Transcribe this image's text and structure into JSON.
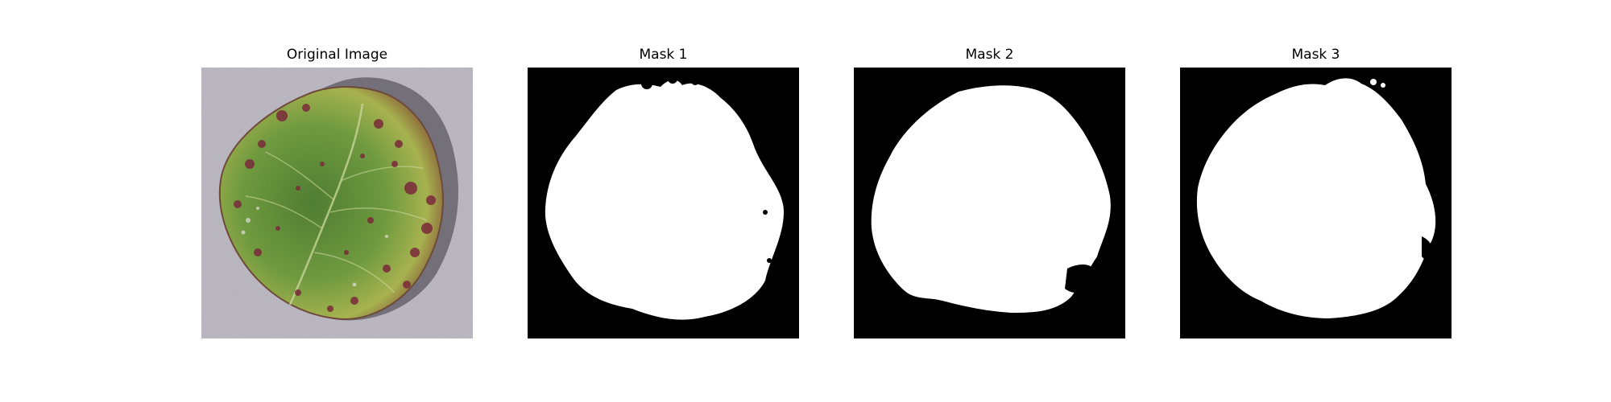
{
  "figure": {
    "panels": [
      {
        "title": "Original Image",
        "kind": "photo",
        "subject": "diseased-leaf"
      },
      {
        "title": "Mask 1",
        "kind": "binary-mask"
      },
      {
        "title": "Mask 2",
        "kind": "binary-mask"
      },
      {
        "title": "Mask 3",
        "kind": "binary-mask"
      }
    ]
  },
  "colors": {
    "background": "#ffffff",
    "mask_foreground": "#ffffff",
    "mask_background": "#000000",
    "photo_backdrop": "#aeaab4",
    "leaf_green": "#5e8a3a",
    "leaf_yellow": "#b7bf58",
    "lesion": "#7a2a3a"
  }
}
